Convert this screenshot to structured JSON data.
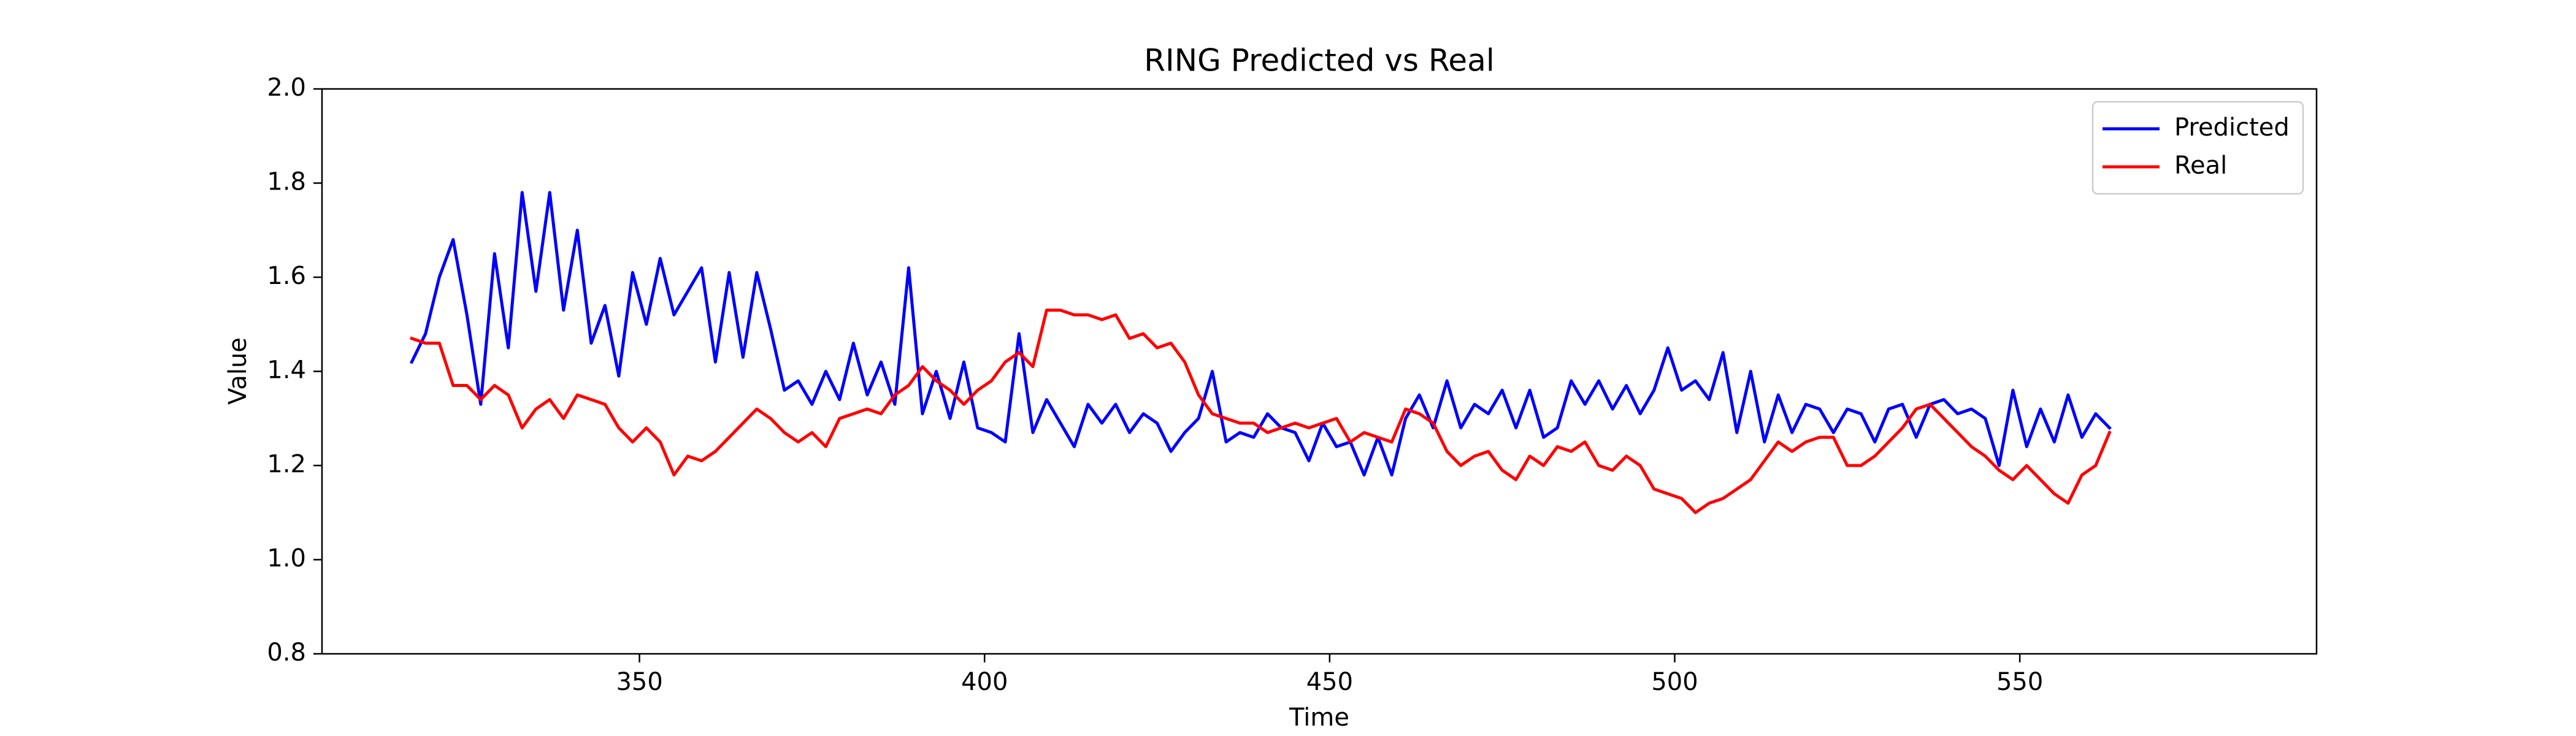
{
  "chart_data": {
    "type": "line",
    "title": "RING Predicted vs Real",
    "x_label": "Time",
    "y_label": "Value",
    "xlim": [
      304,
      593
    ],
    "ylim": [
      0.8,
      2.0
    ],
    "xticks": [
      350,
      400,
      450,
      500,
      550
    ],
    "yticks": [
      {
        "value": 0.8,
        "label": "0.8"
      },
      {
        "value": 1.0,
        "label": "1.0"
      },
      {
        "value": 1.2,
        "label": "1.2"
      },
      {
        "value": 1.4,
        "label": "1.4"
      },
      {
        "value": 1.6,
        "label": "1.6"
      },
      {
        "value": 1.8,
        "label": "1.8"
      },
      {
        "value": 2.0,
        "label": "2.0"
      }
    ],
    "grid": false,
    "legend": "upper right",
    "x": [
      317,
      319,
      321,
      323,
      325,
      327,
      329,
      331,
      333,
      335,
      337,
      339,
      341,
      343,
      345,
      347,
      349,
      351,
      353,
      355,
      357,
      359,
      361,
      363,
      365,
      367,
      369,
      371,
      373,
      375,
      377,
      379,
      381,
      383,
      385,
      387,
      389,
      391,
      393,
      395,
      397,
      399,
      401,
      403,
      405,
      407,
      409,
      411,
      413,
      415,
      417,
      419,
      421,
      423,
      425,
      427,
      429,
      431,
      433,
      435,
      437,
      439,
      441,
      443,
      445,
      447,
      449,
      451,
      453,
      455,
      457,
      459,
      461,
      463,
      465,
      467,
      469,
      471,
      473,
      475,
      477,
      479,
      481,
      483,
      485,
      487,
      489,
      491,
      493,
      495,
      497,
      499,
      501,
      503,
      505,
      507,
      509,
      511,
      513,
      515,
      517,
      519,
      521,
      523,
      525,
      527,
      529,
      531,
      533,
      535,
      537,
      539,
      541,
      543,
      545,
      547,
      549,
      551,
      553,
      555,
      557,
      559,
      561,
      563
    ],
    "series": [
      {
        "name": "Predicted",
        "color": "#0000ff",
        "values": [
          1.42,
          1.48,
          1.6,
          1.68,
          1.52,
          1.33,
          1.65,
          1.45,
          1.78,
          1.57,
          1.78,
          1.53,
          1.7,
          1.46,
          1.54,
          1.39,
          1.61,
          1.5,
          1.64,
          1.52,
          1.57,
          1.62,
          1.42,
          1.61,
          1.43,
          1.61,
          1.49,
          1.36,
          1.38,
          1.33,
          1.4,
          1.34,
          1.46,
          1.35,
          1.42,
          1.33,
          1.62,
          1.31,
          1.4,
          1.3,
          1.42,
          1.28,
          1.27,
          1.25,
          1.48,
          1.27,
          1.34,
          1.29,
          1.24,
          1.33,
          1.29,
          1.33,
          1.27,
          1.31,
          1.29,
          1.23,
          1.27,
          1.3,
          1.4,
          1.25,
          1.27,
          1.26,
          1.31,
          1.28,
          1.27,
          1.21,
          1.29,
          1.24,
          1.25,
          1.18,
          1.26,
          1.18,
          1.3,
          1.35,
          1.28,
          1.38,
          1.28,
          1.33,
          1.31,
          1.36,
          1.28,
          1.36,
          1.26,
          1.28,
          1.38,
          1.33,
          1.38,
          1.32,
          1.37,
          1.31,
          1.36,
          1.45,
          1.36,
          1.38,
          1.34,
          1.44,
          1.27,
          1.4,
          1.25,
          1.35,
          1.27,
          1.33,
          1.32,
          1.27,
          1.32,
          1.31,
          1.25,
          1.32,
          1.33,
          1.26,
          1.33,
          1.34,
          1.31,
          1.32,
          1.3,
          1.2,
          1.36,
          1.24,
          1.32,
          1.25,
          1.35,
          1.26,
          1.31,
          1.28
        ]
      },
      {
        "name": "Real",
        "color": "#ff0000",
        "values": [
          1.47,
          1.46,
          1.46,
          1.37,
          1.37,
          1.34,
          1.37,
          1.35,
          1.28,
          1.32,
          1.34,
          1.3,
          1.35,
          1.34,
          1.33,
          1.28,
          1.25,
          1.28,
          1.25,
          1.18,
          1.22,
          1.21,
          1.23,
          1.26,
          1.29,
          1.32,
          1.3,
          1.27,
          1.25,
          1.27,
          1.24,
          1.3,
          1.31,
          1.32,
          1.31,
          1.35,
          1.37,
          1.41,
          1.38,
          1.36,
          1.33,
          1.36,
          1.38,
          1.42,
          1.44,
          1.41,
          1.53,
          1.53,
          1.52,
          1.52,
          1.51,
          1.52,
          1.47,
          1.48,
          1.45,
          1.46,
          1.42,
          1.35,
          1.31,
          1.3,
          1.29,
          1.29,
          1.27,
          1.28,
          1.29,
          1.28,
          1.29,
          1.3,
          1.25,
          1.27,
          1.26,
          1.25,
          1.32,
          1.31,
          1.29,
          1.23,
          1.2,
          1.22,
          1.23,
          1.19,
          1.17,
          1.22,
          1.2,
          1.24,
          1.23,
          1.25,
          1.2,
          1.19,
          1.22,
          1.2,
          1.15,
          1.14,
          1.13,
          1.1,
          1.12,
          1.13,
          1.15,
          1.17,
          1.21,
          1.25,
          1.23,
          1.25,
          1.26,
          1.26,
          1.2,
          1.2,
          1.22,
          1.25,
          1.28,
          1.32,
          1.33,
          1.3,
          1.27,
          1.24,
          1.22,
          1.19,
          1.17,
          1.2,
          1.17,
          1.14,
          1.12,
          1.18,
          1.2,
          1.27
        ]
      }
    ]
  }
}
